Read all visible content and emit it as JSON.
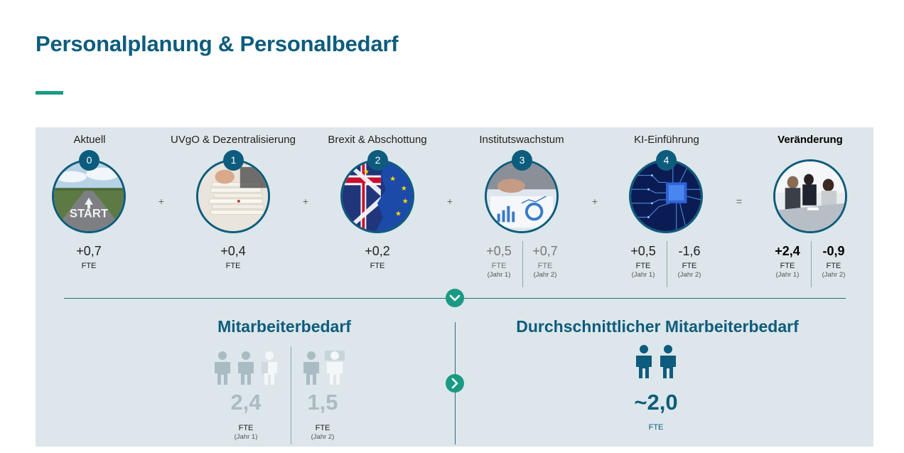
{
  "page": {
    "title": "Personalplanung & Personalbedarf"
  },
  "stages": [
    {
      "label": "Aktuell",
      "badge": "0",
      "image": "start-road-photo",
      "value": "+0,7",
      "unit": "FTE"
    },
    {
      "label": "UVgO & Dezentralisierung",
      "badge": "1",
      "image": "paper-files-photo",
      "value": "+0,4",
      "unit": "FTE"
    },
    {
      "label": "Brexit & Abschottung",
      "badge": "2",
      "image": "uk-eu-flags-photo",
      "value": "+0,2",
      "unit": "FTE"
    },
    {
      "label": "Institutswachstum",
      "badge": "3",
      "image": "business-charts-photo",
      "value1": "+0,5",
      "unit1": "FTE",
      "sub1": "(Jahr 1)",
      "value2": "+0,7",
      "unit2": "FTE",
      "sub2": "(Jahr 2)"
    },
    {
      "label": "KI-Einführung",
      "badge": "4",
      "image": "circuit-board-photo",
      "value1": "+0,5",
      "unit1": "FTE",
      "sub1": "(Jahr 1)",
      "value2": "-1,6",
      "unit2": "FTE",
      "sub2": "(Jahr 2)"
    },
    {
      "label": "Veränderung",
      "image": "team-meeting-photo",
      "value1": "+2,4",
      "unit1": "FTE",
      "sub1": "(Jahr 1)",
      "value2": "-0,9",
      "unit2": "FTE",
      "sub2": "(Jahr 2)"
    }
  ],
  "operators": [
    "+",
    "+",
    "+",
    "+",
    "="
  ],
  "demand": {
    "title": "Mitarbeiterbedarf",
    "year1": {
      "value": "2,4",
      "unit": "FTE",
      "sub": "(Jahr 1)"
    },
    "year2": {
      "value": "1,5",
      "unit": "FTE",
      "sub": "(Jahr 2)"
    }
  },
  "average": {
    "title": "Durchschnittlicher Mitarbeiterbedarf",
    "value": "~2,0",
    "unit": "FTE"
  },
  "colors": {
    "primary": "#0d5c7d",
    "accent": "#1a9a84",
    "panel": "#dde6ea",
    "person_grey": "#a9bcc4",
    "person_light": "#f4f7f8"
  }
}
